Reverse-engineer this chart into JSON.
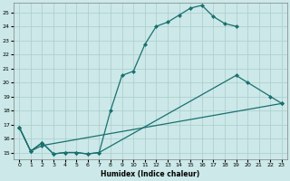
{
  "bg_color": "#cce8e8",
  "grid_color": "#aacccc",
  "line_color": "#1a7070",
  "xlabel": "Humidex (Indice chaleur)",
  "xlim": [
    -0.5,
    23.5
  ],
  "ylim": [
    14.5,
    25.7
  ],
  "xticks": [
    0,
    1,
    2,
    3,
    4,
    5,
    6,
    7,
    8,
    9,
    10,
    11,
    12,
    13,
    14,
    15,
    16,
    17,
    18,
    19,
    20,
    21,
    22,
    23
  ],
  "yticks": [
    15,
    16,
    17,
    18,
    19,
    20,
    21,
    22,
    23,
    24,
    25
  ],
  "curve1_x": [
    0,
    1,
    2,
    3,
    4,
    5,
    6,
    7,
    8,
    9,
    10,
    11,
    12,
    13,
    14,
    15,
    16,
    17,
    18,
    19
  ],
  "curve1_y": [
    16.8,
    15.1,
    15.7,
    14.9,
    15.0,
    15.0,
    14.9,
    15.0,
    18.0,
    20.5,
    20.8,
    22.7,
    24.0,
    24.3,
    24.8,
    25.3,
    25.5,
    24.7,
    24.2,
    24.0
  ],
  "curve2_x": [
    0,
    1,
    2,
    3,
    4,
    5,
    6,
    7,
    19,
    20,
    22,
    23
  ],
  "curve2_y": [
    16.8,
    15.1,
    15.7,
    14.9,
    15.0,
    15.0,
    14.9,
    15.0,
    20.5,
    20.0,
    19.0,
    18.5
  ],
  "curve3_x": [
    0,
    1,
    2,
    23
  ],
  "curve3_y": [
    16.8,
    15.1,
    15.5,
    18.5
  ]
}
